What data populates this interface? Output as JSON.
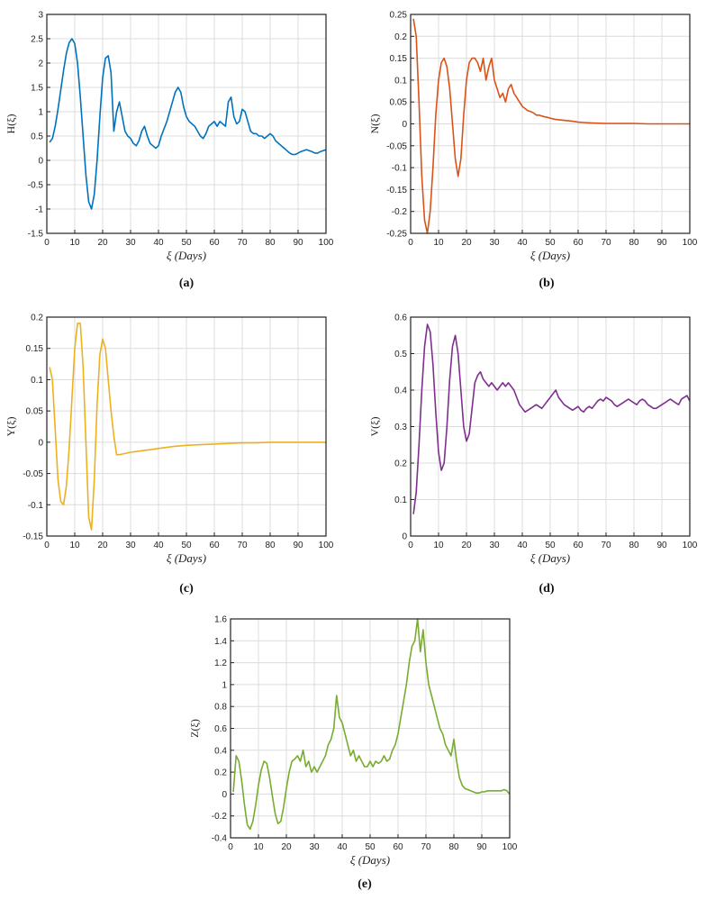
{
  "chart_data": [
    {
      "type": "line",
      "id": "a",
      "ylabel": "H(ξ)",
      "xlabel": "ξ (Days)",
      "caption": "(a)",
      "color": "#0072BD",
      "xlim": [
        0,
        100
      ],
      "ylim": [
        -1.5,
        3
      ],
      "xticks": [
        0,
        10,
        20,
        30,
        40,
        50,
        60,
        70,
        80,
        90,
        100
      ],
      "yticks": [
        -1.5,
        -1,
        -0.5,
        0,
        0.5,
        1,
        1.5,
        2,
        2.5,
        3
      ],
      "yticklabels": [
        "-1.5",
        "-1",
        "-0.5",
        "0",
        "0.5",
        "1",
        "1.5",
        "2",
        "2.5",
        "3"
      ],
      "series": [
        {
          "x": [
            1,
            2,
            3,
            4,
            5,
            6,
            7,
            8,
            9,
            10,
            11,
            12,
            13,
            14,
            15,
            16,
            17,
            18,
            19,
            20,
            21,
            22,
            23,
            24,
            25,
            26,
            27,
            28,
            29,
            30,
            31,
            32,
            33,
            34,
            35,
            36,
            37,
            38,
            39,
            40,
            41,
            42,
            43,
            44,
            45,
            46,
            47,
            48,
            49,
            50,
            51,
            52,
            53,
            54,
            55,
            56,
            57,
            58,
            59,
            60,
            61,
            62,
            63,
            64,
            65,
            66,
            67,
            68,
            69,
            70,
            71,
            72,
            73,
            74,
            75,
            76,
            77,
            78,
            79,
            80,
            81,
            82,
            83,
            84,
            85,
            86,
            87,
            88,
            89,
            90,
            91,
            92,
            93,
            94,
            95,
            96,
            97,
            98,
            99,
            100
          ],
          "y": [
            0.37,
            0.45,
            0.7,
            1.05,
            1.45,
            1.85,
            2.2,
            2.42,
            2.5,
            2.4,
            2.0,
            1.3,
            0.5,
            -0.3,
            -0.85,
            -1.0,
            -0.7,
            0.0,
            0.9,
            1.7,
            2.1,
            2.15,
            1.8,
            0.6,
            1.0,
            1.2,
            0.9,
            0.6,
            0.5,
            0.45,
            0.35,
            0.3,
            0.4,
            0.6,
            0.7,
            0.5,
            0.35,
            0.3,
            0.25,
            0.3,
            0.5,
            0.65,
            0.8,
            1.0,
            1.2,
            1.4,
            1.5,
            1.4,
            1.1,
            0.9,
            0.8,
            0.75,
            0.7,
            0.6,
            0.5,
            0.45,
            0.55,
            0.7,
            0.75,
            0.8,
            0.7,
            0.8,
            0.75,
            0.7,
            1.2,
            1.3,
            0.9,
            0.75,
            0.8,
            1.05,
            1.0,
            0.8,
            0.6,
            0.55,
            0.55,
            0.5,
            0.5,
            0.45,
            0.5,
            0.55,
            0.5,
            0.4,
            0.35,
            0.3,
            0.25,
            0.2,
            0.15,
            0.12,
            0.12,
            0.15,
            0.18,
            0.2,
            0.22,
            0.2,
            0.18,
            0.15,
            0.15,
            0.18,
            0.2,
            0.22
          ]
        }
      ]
    },
    {
      "type": "line",
      "id": "b",
      "ylabel": "N(ξ)",
      "xlabel": "ξ (Days)",
      "caption": "(b)",
      "color": "#D95319",
      "xlim": [
        0,
        100
      ],
      "ylim": [
        -0.25,
        0.25
      ],
      "xticks": [
        0,
        10,
        20,
        30,
        40,
        50,
        60,
        70,
        80,
        90,
        100
      ],
      "yticks": [
        -0.25,
        -0.2,
        -0.15,
        -0.1,
        -0.05,
        0,
        0.05,
        0.1,
        0.15,
        0.2,
        0.25
      ],
      "yticklabels": [
        "-0.25",
        "-0.2",
        "-0.15",
        "-0.1",
        "-0.05",
        "0",
        "0.05",
        "0.1",
        "0.15",
        "0.2",
        "0.25"
      ],
      "series": [
        {
          "x": [
            1,
            2,
            3,
            4,
            5,
            6,
            7,
            8,
            9,
            10,
            11,
            12,
            13,
            14,
            15,
            16,
            17,
            18,
            19,
            20,
            21,
            22,
            23,
            24,
            25,
            26,
            27,
            28,
            29,
            30,
            31,
            32,
            33,
            34,
            35,
            36,
            37,
            38,
            39,
            40,
            41,
            42,
            43,
            44,
            45,
            46,
            47,
            48,
            49,
            50,
            52,
            55,
            58,
            60,
            62,
            65,
            70,
            75,
            80,
            85,
            90,
            95,
            100
          ],
          "y": [
            0.24,
            0.2,
            0.05,
            -0.12,
            -0.22,
            -0.25,
            -0.2,
            -0.1,
            0.02,
            0.1,
            0.14,
            0.15,
            0.13,
            0.08,
            0.0,
            -0.08,
            -0.12,
            -0.08,
            0.02,
            0.1,
            0.14,
            0.15,
            0.15,
            0.14,
            0.12,
            0.15,
            0.1,
            0.13,
            0.15,
            0.1,
            0.08,
            0.06,
            0.07,
            0.05,
            0.08,
            0.09,
            0.07,
            0.06,
            0.05,
            0.04,
            0.035,
            0.03,
            0.028,
            0.025,
            0.02,
            0.02,
            0.018,
            0.016,
            0.015,
            0.013,
            0.01,
            0.008,
            0.006,
            0.004,
            0.003,
            0.002,
            0.001,
            0.001,
            0.001,
            0.0,
            0.0,
            0.0,
            0.0
          ]
        }
      ]
    },
    {
      "type": "line",
      "id": "c",
      "ylabel": "Y(ξ)",
      "xlabel": "ξ (Days)",
      "caption": "(c)",
      "color": "#EDB120",
      "xlim": [
        0,
        100
      ],
      "ylim": [
        -0.15,
        0.2
      ],
      "xticks": [
        0,
        10,
        20,
        30,
        40,
        50,
        60,
        70,
        80,
        90,
        100
      ],
      "yticks": [
        -0.15,
        -0.1,
        -0.05,
        0,
        0.05,
        0.1,
        0.15,
        0.2
      ],
      "yticklabels": [
        "-0.15",
        "-0.1",
        "-0.05",
        "0",
        "0.05",
        "0.1",
        "0.15",
        "0.2"
      ],
      "series": [
        {
          "x": [
            1,
            2,
            3,
            4,
            5,
            6,
            7,
            8,
            9,
            10,
            11,
            12,
            13,
            14,
            15,
            16,
            17,
            18,
            19,
            20,
            21,
            22,
            23,
            24,
            25,
            26,
            28,
            30,
            35,
            40,
            45,
            50,
            55,
            60,
            65,
            70,
            75,
            80,
            85,
            90,
            95,
            100
          ],
          "y": [
            0.12,
            0.1,
            0.02,
            -0.06,
            -0.095,
            -0.1,
            -0.07,
            -0.01,
            0.07,
            0.15,
            0.19,
            0.19,
            0.12,
            0.0,
            -0.12,
            -0.14,
            -0.06,
            0.06,
            0.14,
            0.165,
            0.15,
            0.1,
            0.05,
            0.01,
            -0.02,
            -0.02,
            -0.018,
            -0.016,
            -0.013,
            -0.01,
            -0.007,
            -0.005,
            -0.004,
            -0.003,
            -0.002,
            -0.001,
            -0.001,
            0.0,
            0.0,
            0.0,
            0.0,
            0.0
          ]
        }
      ]
    },
    {
      "type": "line",
      "id": "d",
      "ylabel": "V(ξ)",
      "xlabel": "ξ (Days)",
      "caption": "(d)",
      "color": "#7E2F8E",
      "xlim": [
        0,
        100
      ],
      "ylim": [
        0,
        0.6
      ],
      "xticks": [
        0,
        10,
        20,
        30,
        40,
        50,
        60,
        70,
        80,
        90,
        100
      ],
      "yticks": [
        0,
        0.1,
        0.2,
        0.3,
        0.4,
        0.5,
        0.6
      ],
      "yticklabels": [
        "0",
        "0.1",
        "0.2",
        "0.3",
        "0.4",
        "0.5",
        "0.6"
      ],
      "series": [
        {
          "x": [
            1,
            2,
            3,
            4,
            5,
            6,
            7,
            8,
            9,
            10,
            11,
            12,
            13,
            14,
            15,
            16,
            17,
            18,
            19,
            20,
            21,
            22,
            23,
            24,
            25,
            26,
            27,
            28,
            29,
            30,
            31,
            32,
            33,
            34,
            35,
            36,
            37,
            38,
            39,
            40,
            41,
            42,
            43,
            44,
            45,
            46,
            47,
            48,
            49,
            50,
            51,
            52,
            53,
            54,
            55,
            56,
            57,
            58,
            59,
            60,
            61,
            62,
            63,
            64,
            65,
            66,
            67,
            68,
            69,
            70,
            71,
            72,
            73,
            74,
            75,
            76,
            77,
            78,
            79,
            80,
            81,
            82,
            83,
            84,
            85,
            86,
            87,
            88,
            89,
            90,
            91,
            92,
            93,
            94,
            95,
            96,
            97,
            98,
            99,
            100
          ],
          "y": [
            0.06,
            0.12,
            0.25,
            0.4,
            0.52,
            0.58,
            0.56,
            0.47,
            0.34,
            0.23,
            0.18,
            0.2,
            0.3,
            0.43,
            0.52,
            0.55,
            0.5,
            0.4,
            0.3,
            0.26,
            0.28,
            0.35,
            0.42,
            0.44,
            0.45,
            0.43,
            0.42,
            0.41,
            0.42,
            0.41,
            0.4,
            0.41,
            0.42,
            0.41,
            0.42,
            0.41,
            0.4,
            0.38,
            0.36,
            0.35,
            0.34,
            0.345,
            0.35,
            0.355,
            0.36,
            0.355,
            0.35,
            0.36,
            0.37,
            0.38,
            0.39,
            0.4,
            0.38,
            0.37,
            0.36,
            0.355,
            0.35,
            0.345,
            0.35,
            0.355,
            0.345,
            0.34,
            0.35,
            0.355,
            0.35,
            0.36,
            0.37,
            0.375,
            0.37,
            0.38,
            0.375,
            0.37,
            0.36,
            0.355,
            0.36,
            0.365,
            0.37,
            0.375,
            0.37,
            0.365,
            0.36,
            0.37,
            0.375,
            0.37,
            0.36,
            0.355,
            0.35,
            0.35,
            0.355,
            0.36,
            0.365,
            0.37,
            0.375,
            0.37,
            0.365,
            0.36,
            0.375,
            0.38,
            0.385,
            0.37
          ]
        }
      ]
    },
    {
      "type": "line",
      "id": "e",
      "ylabel": "Z(ξ)",
      "xlabel": "ξ (Days)",
      "caption": "(e)",
      "color": "#77AC30",
      "xlim": [
        0,
        100
      ],
      "ylim": [
        -0.4,
        1.6
      ],
      "xticks": [
        0,
        10,
        20,
        30,
        40,
        50,
        60,
        70,
        80,
        90,
        100
      ],
      "yticks": [
        -0.4,
        -0.2,
        0,
        0.2,
        0.4,
        0.6,
        0.8,
        1,
        1.2,
        1.4,
        1.6
      ],
      "yticklabels": [
        "-0.4",
        "-0.2",
        "0",
        "0.2",
        "0.4",
        "0.6",
        "0.8",
        "1",
        "1.2",
        "1.4",
        "1.6"
      ],
      "series": [
        {
          "x": [
            1,
            2,
            3,
            4,
            5,
            6,
            7,
            8,
            9,
            10,
            11,
            12,
            13,
            14,
            15,
            16,
            17,
            18,
            19,
            20,
            21,
            22,
            23,
            24,
            25,
            26,
            27,
            28,
            29,
            30,
            31,
            32,
            33,
            34,
            35,
            36,
            37,
            38,
            39,
            40,
            41,
            42,
            43,
            44,
            45,
            46,
            47,
            48,
            49,
            50,
            51,
            52,
            53,
            54,
            55,
            56,
            57,
            58,
            59,
            60,
            61,
            62,
            63,
            64,
            65,
            66,
            67,
            68,
            69,
            70,
            71,
            72,
            73,
            74,
            75,
            76,
            77,
            78,
            79,
            80,
            81,
            82,
            83,
            84,
            85,
            86,
            87,
            88,
            89,
            90,
            91,
            92,
            93,
            94,
            95,
            96,
            97,
            98,
            99,
            100
          ],
          "y": [
            0.02,
            0.35,
            0.3,
            0.12,
            -0.1,
            -0.28,
            -0.32,
            -0.25,
            -0.1,
            0.08,
            0.22,
            0.3,
            0.28,
            0.15,
            -0.02,
            -0.18,
            -0.27,
            -0.25,
            -0.12,
            0.05,
            0.2,
            0.3,
            0.32,
            0.35,
            0.3,
            0.4,
            0.25,
            0.3,
            0.2,
            0.25,
            0.2,
            0.25,
            0.3,
            0.35,
            0.45,
            0.5,
            0.6,
            0.9,
            0.7,
            0.65,
            0.55,
            0.45,
            0.35,
            0.4,
            0.3,
            0.35,
            0.3,
            0.25,
            0.25,
            0.3,
            0.25,
            0.3,
            0.28,
            0.3,
            0.35,
            0.3,
            0.32,
            0.4,
            0.45,
            0.55,
            0.7,
            0.85,
            1.0,
            1.2,
            1.35,
            1.4,
            1.6,
            1.3,
            1.5,
            1.2,
            1.0,
            0.9,
            0.8,
            0.7,
            0.6,
            0.55,
            0.45,
            0.4,
            0.35,
            0.5,
            0.3,
            0.15,
            0.08,
            0.05,
            0.04,
            0.03,
            0.02,
            0.01,
            0.01,
            0.02,
            0.02,
            0.03,
            0.03,
            0.03,
            0.03,
            0.03,
            0.03,
            0.04,
            0.03,
            0.0
          ]
        }
      ]
    }
  ]
}
